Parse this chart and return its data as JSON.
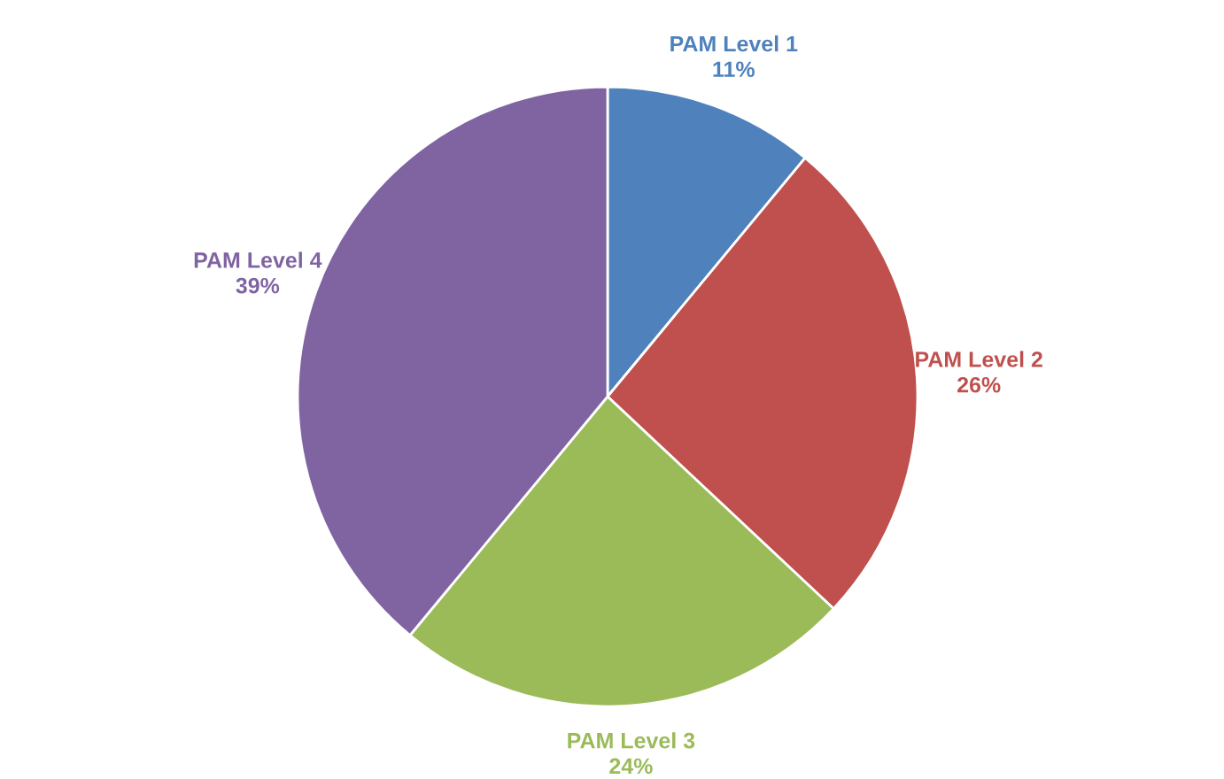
{
  "chart_data": {
    "type": "pie",
    "categories": [
      "PAM Level 1",
      "PAM Level 2",
      "PAM Level 3",
      "PAM Level 4"
    ],
    "values": [
      11,
      26,
      24,
      39
    ],
    "value_labels": [
      "11%",
      "26%",
      "24%",
      "39%"
    ],
    "colors": [
      "#4f81bd",
      "#c0504d",
      "#9bbb59",
      "#8064a2"
    ],
    "legend": false
  }
}
